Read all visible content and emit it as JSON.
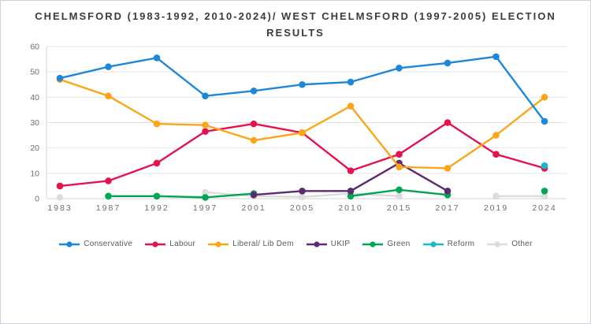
{
  "header": {
    "title_line1": "CHELMSFORD (1983-1992, 2010-2024)/ WEST CHELMSFORD (1997-2005) ELECTION",
    "title_line2": "RESULTS"
  },
  "chart_data": {
    "type": "line",
    "title": "CHELMSFORD (1983-1992, 2010-2024)/ WEST CHELMSFORD (1997-2005) ELECTION RESULTS",
    "categories": [
      "1983",
      "1987",
      "1992",
      "1997",
      "2001",
      "2005",
      "2010",
      "2015",
      "2017",
      "2019",
      "2024"
    ],
    "xlabel": "",
    "ylabel": "",
    "ylim": [
      0,
      60
    ],
    "yticks": [
      0,
      10,
      20,
      30,
      40,
      50,
      60
    ],
    "grid": true,
    "legend_position": "bottom",
    "series": [
      {
        "name": "Conservative",
        "color": "#1f87d7",
        "values": [
          47.5,
          52,
          55.5,
          40.5,
          42.5,
          45,
          46,
          51.5,
          53.5,
          56,
          30.5
        ]
      },
      {
        "name": "Labour",
        "color": "#e4134e",
        "values": [
          5,
          7,
          14,
          26.5,
          29.5,
          26,
          11,
          17.5,
          30,
          17.5,
          12
        ]
      },
      {
        "name": "Liberal/ Lib Dem",
        "color": "#faa61a",
        "values": [
          47,
          40.5,
          29.5,
          29,
          23,
          26,
          36.5,
          12.5,
          12,
          25,
          40
        ]
      },
      {
        "name": "UKIP",
        "color": "#5b2c6f",
        "values": [
          null,
          null,
          null,
          null,
          1.5,
          3,
          3,
          14,
          3,
          null,
          null
        ]
      },
      {
        "name": "Green",
        "color": "#00a651",
        "values": [
          null,
          1,
          1,
          0.5,
          2,
          null,
          1,
          3.5,
          1.5,
          null,
          3
        ]
      },
      {
        "name": "Reform",
        "color": "#18b8cd",
        "values": [
          null,
          null,
          null,
          null,
          null,
          null,
          null,
          null,
          null,
          null,
          13
        ]
      },
      {
        "name": "Other",
        "color": "#dcdcdc",
        "values": [
          0.5,
          null,
          null,
          2.5,
          1,
          0.7,
          2,
          1,
          null,
          1,
          1
        ]
      }
    ],
    "draw_order": [
      "Other",
      "Green",
      "UKIP",
      "Labour",
      "Liberal/ Lib Dem",
      "Reform",
      "Conservative"
    ]
  },
  "colors": {
    "grid": "#e4e4e4",
    "axis": "#d4d4d4",
    "tick_label": "#6e6e6e",
    "title": "#3b3b41",
    "legend_label": "#595959",
    "background": "#ffffff"
  }
}
